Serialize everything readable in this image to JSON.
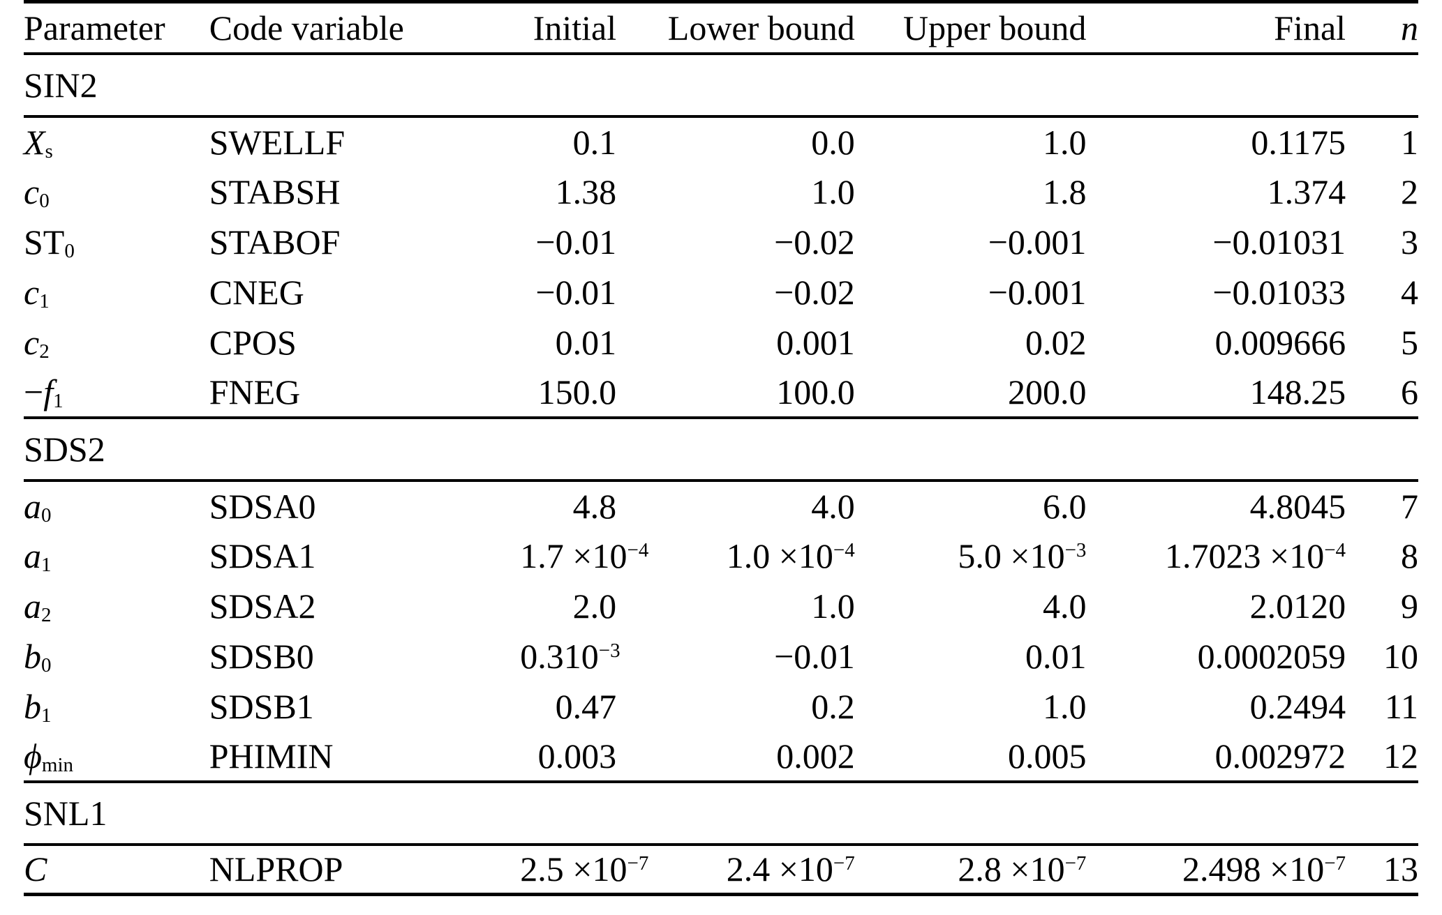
{
  "table": {
    "columns": [
      {
        "label": "Parameter",
        "align": "left"
      },
      {
        "label": "Code variable",
        "align": "left"
      },
      {
        "label": "Initial",
        "align": "right"
      },
      {
        "label": "Lower bound",
        "align": "right"
      },
      {
        "label": "Upper bound",
        "align": "right"
      },
      {
        "label": "Final",
        "align": "right"
      },
      {
        "label": "*n*",
        "align": "right"
      }
    ],
    "sections": [
      {
        "name": "SIN2",
        "rows": [
          [
            "*X*_{s}",
            "SWELLF",
            "0.1",
            "0.0",
            "1.0",
            "0.1175",
            "1"
          ],
          [
            "*c*_{0}",
            "STABSH",
            "1.38",
            "1.0",
            "1.8",
            "1.374",
            "2"
          ],
          [
            "ST_{0}",
            "STABOF",
            "−0.01",
            "−0.02",
            "−0.001",
            "−0.01031",
            "3"
          ],
          [
            "*c*_{1}",
            "CNEG",
            "−0.01",
            "−0.02",
            "−0.001",
            "−0.01033",
            "4"
          ],
          [
            "*c*_{2}",
            "CPOS",
            "0.01",
            "0.001",
            "0.02",
            "0.009666",
            "5"
          ],
          [
            "−*f*_{1}",
            "FNEG",
            "150.0",
            "100.0",
            "200.0",
            "148.25",
            "6"
          ]
        ]
      },
      {
        "name": "SDS2",
        "rows": [
          [
            "*a*_{0}",
            "SDSA0",
            "4.8",
            "4.0",
            "6.0",
            "4.8045",
            "7"
          ],
          [
            "*a*_{1}",
            "SDSA1",
            "1.7 ×10^{−4}",
            "1.0 ×10^{−4}",
            "5.0 ×10^{−3}",
            "1.7023 ×10^{−4}",
            "8"
          ],
          [
            "*a*_{2}",
            "SDSA2",
            "2.0",
            "1.0",
            "4.0",
            "2.0120",
            "9"
          ],
          [
            "*b*_{0}",
            "SDSB0",
            "0.310^{−3}",
            "−0.01",
            "0.01",
            "0.0002059",
            "10"
          ],
          [
            "*b*_{1}",
            "SDSB1",
            "0.47",
            "0.2",
            "1.0",
            "0.2494",
            "11"
          ],
          [
            "*ϕ*_{min}",
            "PHIMIN",
            "0.003",
            "0.002",
            "0.005",
            "0.002972",
            "12"
          ]
        ]
      },
      {
        "name": "SNL1",
        "rows": [
          [
            "*C*",
            "NLPROP",
            "2.5 ×10^{−7}",
            "2.4 ×10^{−7}",
            "2.8 ×10^{−7}",
            "2.498 ×10^{−7}",
            "13"
          ]
        ]
      }
    ]
  }
}
